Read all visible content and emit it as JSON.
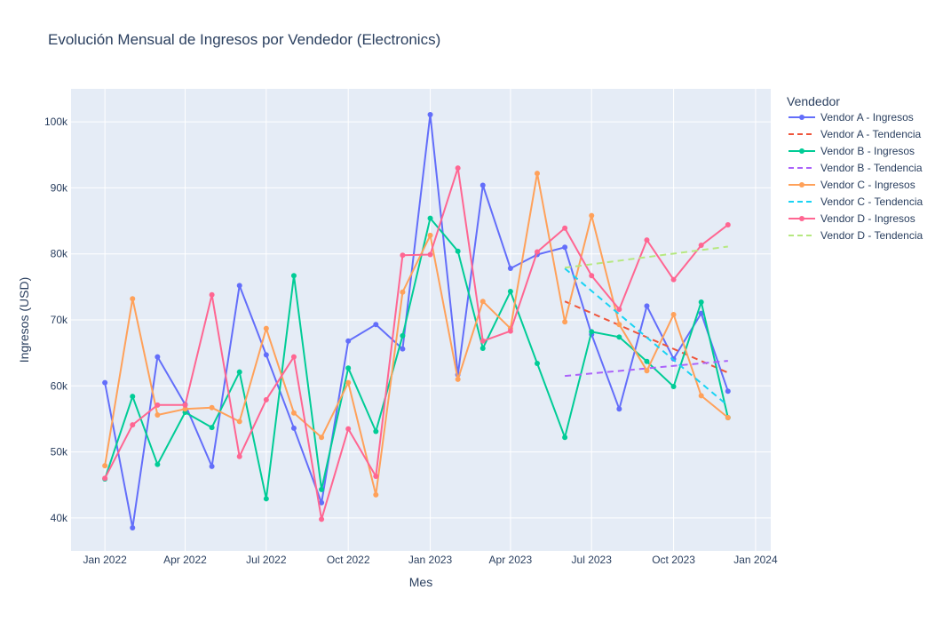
{
  "chart_data": {
    "type": "line",
    "title": "Evolución Mensual de Ingresos por Vendedor (Electronics)",
    "xlabel": "Mes",
    "ylabel": "Ingresos (USD)",
    "legend_title": "Vendedor",
    "legend_position": "right",
    "grid": true,
    "background_color": "#e5ecf6",
    "x_range": [
      "2021-11-24",
      "2024-01-18"
    ],
    "y_range": [
      35000,
      105000
    ],
    "x_ticks": [
      {
        "date": "2022-01-01",
        "label": "Jan 2022"
      },
      {
        "date": "2022-04-01",
        "label": "Apr 2022"
      },
      {
        "date": "2022-07-01",
        "label": "Jul 2022"
      },
      {
        "date": "2022-10-01",
        "label": "Oct 2022"
      },
      {
        "date": "2023-01-01",
        "label": "Jan 2023"
      },
      {
        "date": "2023-04-01",
        "label": "Apr 2023"
      },
      {
        "date": "2023-07-01",
        "label": "Jul 2023"
      },
      {
        "date": "2023-10-01",
        "label": "Oct 2023"
      },
      {
        "date": "2024-01-01",
        "label": "Jan 2024"
      }
    ],
    "y_ticks": [
      {
        "value": 40000,
        "label": "40k"
      },
      {
        "value": 50000,
        "label": "50k"
      },
      {
        "value": 60000,
        "label": "60k"
      },
      {
        "value": 70000,
        "label": "70k"
      },
      {
        "value": 80000,
        "label": "80k"
      },
      {
        "value": 90000,
        "label": "90k"
      },
      {
        "value": 100000,
        "label": "100k"
      }
    ],
    "months": [
      "2022-01-01",
      "2022-02-01",
      "2022-03-01",
      "2022-04-01",
      "2022-05-01",
      "2022-06-01",
      "2022-07-01",
      "2022-08-01",
      "2022-09-01",
      "2022-10-01",
      "2022-11-01",
      "2022-12-01",
      "2023-01-01",
      "2023-02-01",
      "2023-03-01",
      "2023-04-01",
      "2023-05-01",
      "2023-06-01",
      "2023-07-01",
      "2023-08-01",
      "2023-09-01",
      "2023-10-01",
      "2023-11-01",
      "2023-12-01"
    ],
    "series": [
      {
        "name": "Vendor A - Ingresos",
        "kind": "markers+lines",
        "color": "#636efa",
        "values": [
          60500,
          38500,
          64400,
          57200,
          47800,
          75200,
          64700,
          53600,
          42300,
          66800,
          69300,
          65600,
          101100,
          61700,
          90400,
          77800,
          79900,
          81000,
          67800,
          56500,
          72100,
          64100,
          71000,
          59200
        ]
      },
      {
        "name": "Vendor A - Tendencia",
        "kind": "dash",
        "color": "#ef553b",
        "x": [
          "2023-06-01",
          "2023-12-01"
        ],
        "values": [
          72800,
          62000
        ]
      },
      {
        "name": "Vendor B - Ingresos",
        "kind": "markers+lines",
        "color": "#00cc96",
        "values": [
          45900,
          58400,
          48100,
          56000,
          53700,
          62100,
          42900,
          76700,
          44300,
          62700,
          53100,
          67600,
          85400,
          80400,
          65700,
          74300,
          63400,
          52200,
          68200,
          67400,
          63700,
          59900,
          72700,
          55200
        ]
      },
      {
        "name": "Vendor B - Tendencia",
        "kind": "dash",
        "color": "#ab63fa",
        "x": [
          "2023-06-01",
          "2023-12-01"
        ],
        "values": [
          61500,
          63800
        ]
      },
      {
        "name": "Vendor C - Ingresos",
        "kind": "markers+lines",
        "color": "#ffa15a",
        "values": [
          47900,
          73200,
          55600,
          56500,
          56700,
          54600,
          68700,
          55900,
          52200,
          60500,
          43500,
          74200,
          82800,
          61000,
          72800,
          68700,
          92200,
          69700,
          85800,
          69300,
          62300,
          70800,
          58500,
          55200
        ]
      },
      {
        "name": "Vendor C - Tendencia",
        "kind": "dash",
        "color": "#19d3f3",
        "x": [
          "2023-06-01",
          "2023-12-01"
        ],
        "values": [
          77800,
          57000
        ]
      },
      {
        "name": "Vendor D - Ingresos",
        "kind": "markers+lines",
        "color": "#ff6692",
        "values": [
          46000,
          54100,
          57100,
          57100,
          73800,
          49300,
          57900,
          64400,
          39800,
          53500,
          46300,
          79800,
          79900,
          93000,
          66800,
          68300,
          80300,
          83900,
          76700,
          71600,
          82100,
          76100,
          81300,
          84400
        ]
      },
      {
        "name": "Vendor D - Tendencia",
        "kind": "dash",
        "color": "#b6e880",
        "x": [
          "2023-06-01",
          "2023-12-01"
        ],
        "values": [
          77900,
          81100
        ]
      }
    ]
  }
}
